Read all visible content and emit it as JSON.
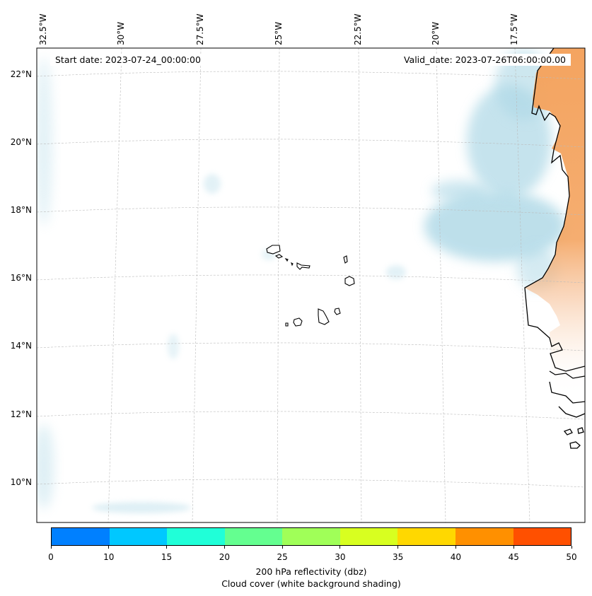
{
  "header": {
    "start_date": "Start date: 2023-07-24_00:00:00",
    "valid_date": "Valid_date: 2023-07-26T06:00:00.00"
  },
  "axes": {
    "longitude_labels": [
      "32.5°W",
      "30°W",
      "27.5°W",
      "25°W",
      "22.5°W",
      "20°W",
      "17.5°W"
    ],
    "latitude_labels": [
      "22°N",
      "20°N",
      "18°N",
      "16°N",
      "14°N",
      "12°N",
      "10°N"
    ]
  },
  "colorbar": {
    "ticks": [
      "0",
      "10",
      "15",
      "20",
      "25",
      "30",
      "35",
      "40",
      "45",
      "50"
    ],
    "colors": [
      "#0080ff",
      "#00c8ff",
      "#20ffd8",
      "#64ff90",
      "#a0ff58",
      "#d8ff20",
      "#ffd800",
      "#ff9000",
      "#ff5000"
    ],
    "label_line1": "200 hPa reflectivity (dbz)",
    "label_line2": "Cloud cover (white background shading)"
  },
  "colors": {
    "land_shading": "#f4a460",
    "cloud_shading": "#add8e6"
  }
}
